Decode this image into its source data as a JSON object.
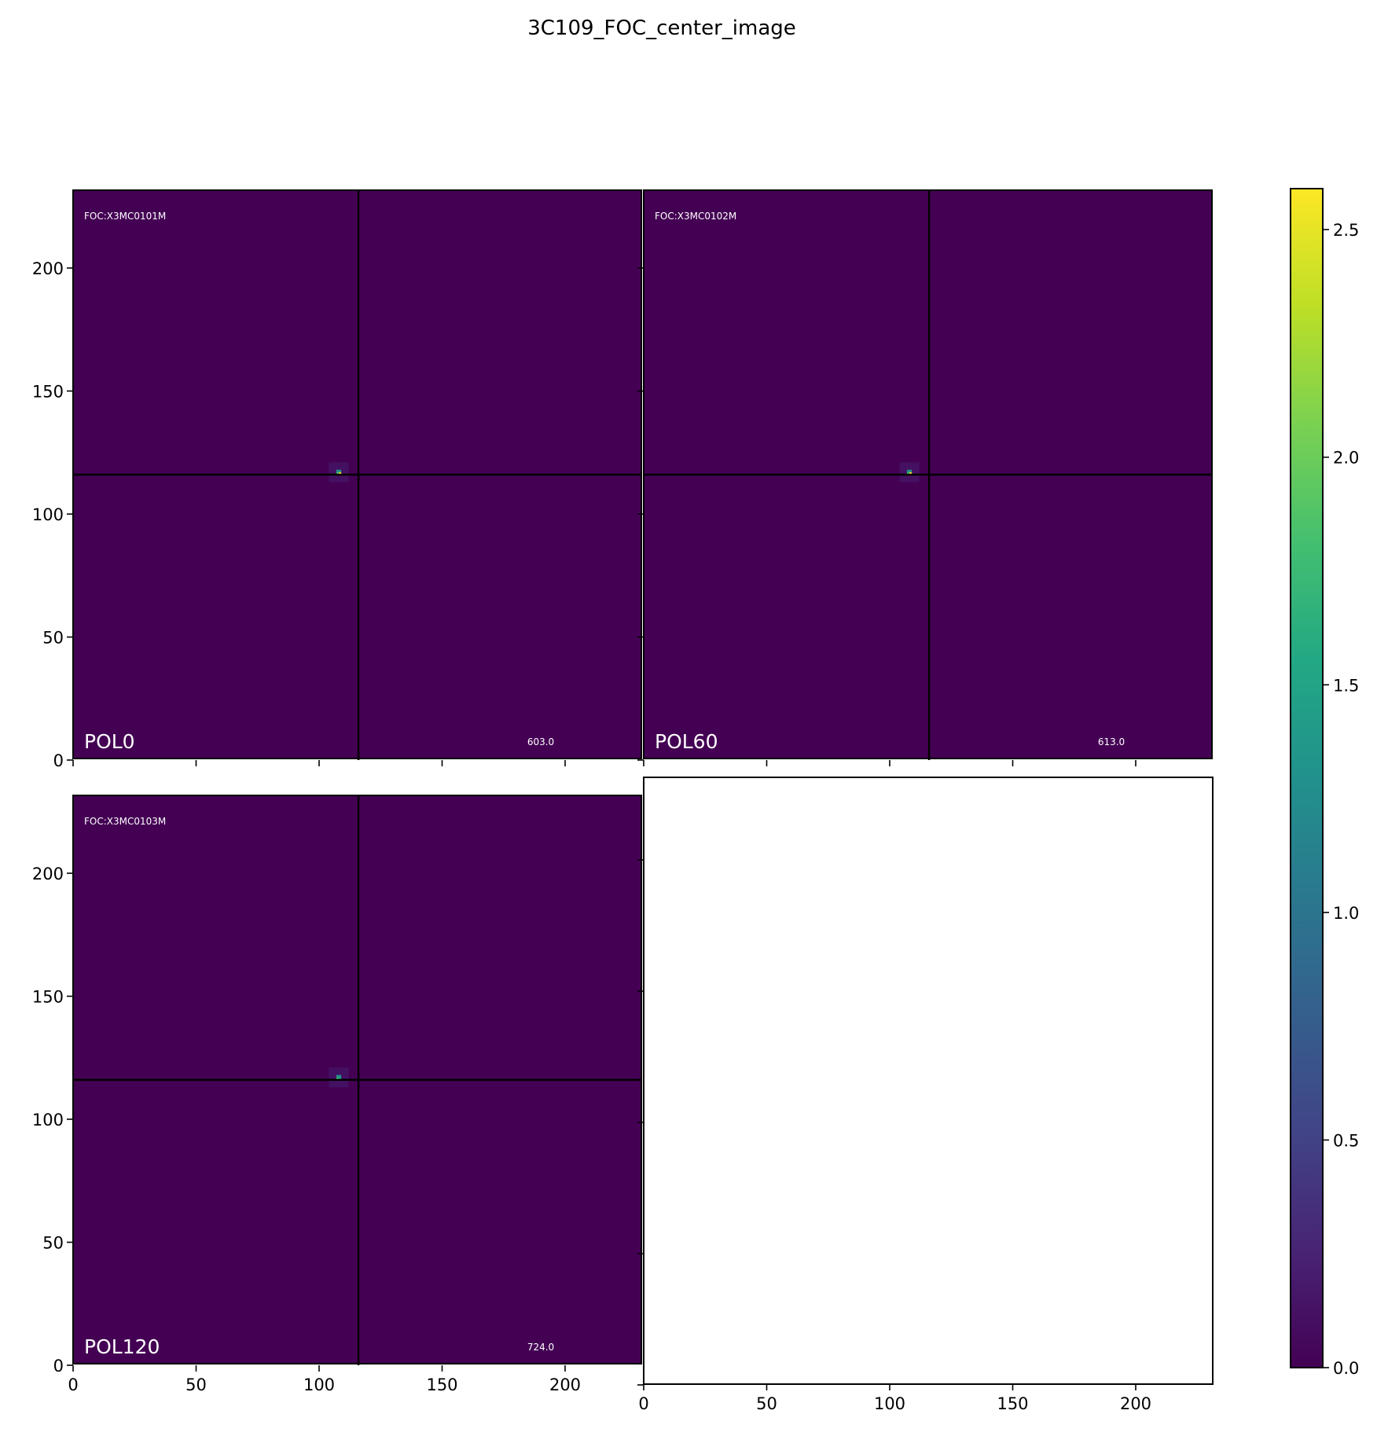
{
  "chart_data": {
    "type": "heatmap",
    "title": "3C109_FOC_center_image",
    "colormap": "viridis",
    "background_color": "#440154",
    "crosshair_color": "#000000",
    "colorbar": {
      "range": [
        0.0,
        2.59
      ],
      "ticks": [
        0.0,
        0.5,
        1.0,
        1.5,
        2.0,
        2.5
      ],
      "tick_labels": [
        "0.0",
        "0.5",
        "1.0",
        "1.5",
        "2.0",
        "2.5"
      ]
    },
    "xlim": [
      0,
      231
    ],
    "ylim": [
      0,
      231
    ],
    "x_ticks": [
      0,
      50,
      100,
      150,
      200
    ],
    "x_tick_labels": [
      "0",
      "50",
      "100",
      "150",
      "200"
    ],
    "y_ticks": [
      0,
      50,
      100,
      150,
      200
    ],
    "y_tick_labels": [
      "0",
      "50",
      "100",
      "150",
      "200"
    ],
    "crosshair": [
      116,
      116
    ],
    "panels": [
      {
        "id": "FOC:X3MC0101M",
        "filter": "POL0",
        "value_label": "603.0",
        "peak": {
          "x": 108,
          "y": 117,
          "value": 2.59
        }
      },
      {
        "id": "FOC:X3MC0102M",
        "filter": "POL60",
        "value_label": "613.0",
        "peak": {
          "x": 108,
          "y": 117,
          "value": 2.5
        }
      },
      {
        "id": "FOC:X3MC0103M",
        "filter": "POL120",
        "value_label": "724.0",
        "peak": {
          "x": 108,
          "y": 117,
          "value": 1.6
        }
      },
      {
        "empty": true
      }
    ]
  }
}
